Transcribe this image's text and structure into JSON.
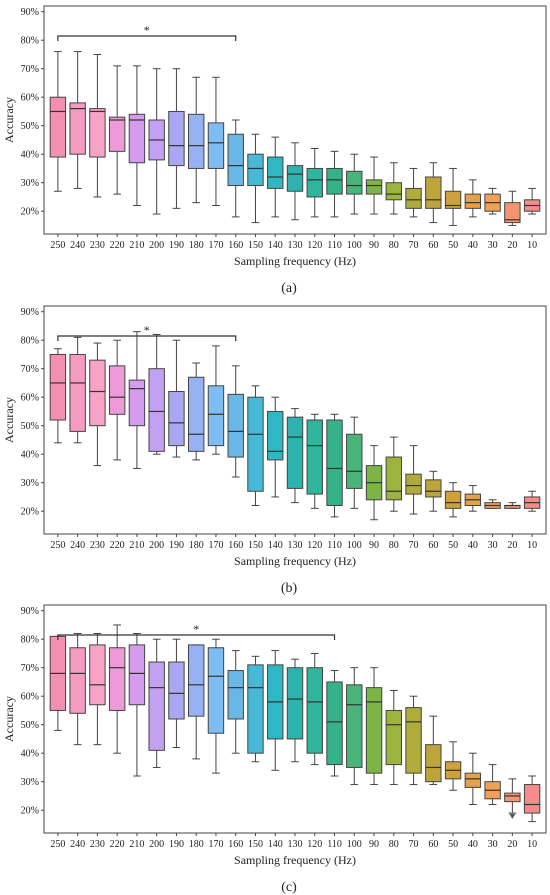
{
  "figure": {
    "panels": [
      "a",
      "b",
      "c"
    ]
  },
  "chart_data": [
    {
      "type": "box",
      "caption": "(a)",
      "xlabel": "Sampling frequency (Hz)",
      "ylabel": "Accuracy",
      "ylim": [
        12,
        92
      ],
      "yticks": [
        "20%",
        "30%",
        "40%",
        "50%",
        "60%",
        "70%",
        "80%",
        "90%"
      ],
      "ytick_values": [
        20,
        30,
        40,
        50,
        60,
        70,
        80,
        90
      ],
      "categories": [
        "250",
        "240",
        "230",
        "220",
        "210",
        "200",
        "190",
        "180",
        "170",
        "160",
        "150",
        "140",
        "130",
        "120",
        "110",
        "100",
        "90",
        "80",
        "70",
        "60",
        "50",
        "40",
        "30",
        "20",
        "10"
      ],
      "colors": [
        "#f48fb1",
        "#f59ac0",
        "#f6a3c6",
        "#ee9ad8",
        "#d59cee",
        "#c3a1f2",
        "#a9a6f2",
        "#97b2f2",
        "#7fbcf4",
        "#6ab7e6",
        "#47b8d6",
        "#2fb7c4",
        "#2db3ae",
        "#2fb59b",
        "#35b388",
        "#48b479",
        "#7cb545",
        "#9db33e",
        "#b0ac3c",
        "#bda53b",
        "#cfa13c",
        "#e3a14b",
        "#f0a158",
        "#f5956f",
        "#f68b8b"
      ],
      "boxes": [
        {
          "min": 27,
          "q1": 39,
          "median": 55,
          "q3": 60,
          "max": 76
        },
        {
          "min": 28,
          "q1": 40,
          "median": 56,
          "q3": 58,
          "max": 76
        },
        {
          "min": 25,
          "q1": 39,
          "median": 55,
          "q3": 56,
          "max": 75
        },
        {
          "min": 26,
          "q1": 41,
          "median": 52,
          "q3": 53,
          "max": 71
        },
        {
          "min": 22,
          "q1": 37,
          "median": 52,
          "q3": 54,
          "max": 71
        },
        {
          "min": 19,
          "q1": 38,
          "median": 45,
          "q3": 52,
          "max": 70
        },
        {
          "min": 21,
          "q1": 36,
          "median": 43,
          "q3": 55,
          "max": 70
        },
        {
          "min": 23,
          "q1": 35,
          "median": 43,
          "q3": 54,
          "max": 67
        },
        {
          "min": 22,
          "q1": 35,
          "median": 44,
          "q3": 51,
          "max": 67
        },
        {
          "min": 18,
          "q1": 29,
          "median": 36,
          "q3": 47,
          "max": 52
        },
        {
          "min": 16,
          "q1": 29,
          "median": 35,
          "q3": 40,
          "max": 47
        },
        {
          "min": 18,
          "q1": 28,
          "median": 32,
          "q3": 39,
          "max": 46
        },
        {
          "min": 17,
          "q1": 27,
          "median": 33,
          "q3": 36,
          "max": 44
        },
        {
          "min": 18,
          "q1": 25,
          "median": 31,
          "q3": 35,
          "max": 42
        },
        {
          "min": 18,
          "q1": 26,
          "median": 31,
          "q3": 35,
          "max": 41
        },
        {
          "min": 19,
          "q1": 26,
          "median": 29,
          "q3": 34,
          "max": 40
        },
        {
          "min": 19,
          "q1": 26,
          "median": 29,
          "q3": 31,
          "max": 39
        },
        {
          "min": 19,
          "q1": 24,
          "median": 26,
          "q3": 30,
          "max": 37
        },
        {
          "min": 18,
          "q1": 21,
          "median": 24,
          "q3": 28,
          "max": 35
        },
        {
          "min": 16,
          "q1": 21,
          "median": 24,
          "q3": 32,
          "max": 37
        },
        {
          "min": 15,
          "q1": 21,
          "median": 22,
          "q3": 27,
          "max": 35
        },
        {
          "min": 18,
          "q1": 21,
          "median": 23,
          "q3": 26,
          "max": 31
        },
        {
          "min": 19,
          "q1": 20,
          "median": 23,
          "q3": 26,
          "max": 28
        },
        {
          "min": 15,
          "q1": 16,
          "median": 17,
          "q3": 23,
          "max": 27
        },
        {
          "min": 19,
          "q1": 20,
          "median": 22,
          "q3": 24,
          "max": 28
        }
      ],
      "significance": {
        "from": "250",
        "to": "160",
        "label": "*"
      }
    },
    {
      "type": "box",
      "caption": "(b)",
      "xlabel": "Sampling frequency (Hz)",
      "ylabel": "Accuracy",
      "ylim": [
        12,
        92
      ],
      "yticks": [
        "20%",
        "30%",
        "40%",
        "50%",
        "60%",
        "70%",
        "80%",
        "90%"
      ],
      "ytick_values": [
        20,
        30,
        40,
        50,
        60,
        70,
        80,
        90
      ],
      "categories": [
        "250",
        "240",
        "230",
        "220",
        "210",
        "200",
        "190",
        "180",
        "170",
        "160",
        "150",
        "140",
        "130",
        "120",
        "110",
        "100",
        "90",
        "80",
        "70",
        "60",
        "50",
        "40",
        "30",
        "20",
        "10"
      ],
      "colors": [
        "#f48fb1",
        "#f59ac0",
        "#f6a3c6",
        "#ee9ad8",
        "#d59cee",
        "#c3a1f2",
        "#a9a6f2",
        "#97b2f2",
        "#7fbcf4",
        "#6ab7e6",
        "#47b8d6",
        "#2fb7c4",
        "#2db3ae",
        "#2fb59b",
        "#35b388",
        "#48b479",
        "#7cb545",
        "#9db33e",
        "#b0ac3c",
        "#bda53b",
        "#cfa13c",
        "#e3a14b",
        "#f0a158",
        "#f5956f",
        "#f68b8b"
      ],
      "boxes": [
        {
          "min": 44,
          "q1": 52,
          "median": 65,
          "q3": 75,
          "max": 77
        },
        {
          "min": 44,
          "q1": 48,
          "median": 65,
          "q3": 75,
          "max": 81
        },
        {
          "min": 36,
          "q1": 50,
          "median": 62,
          "q3": 73,
          "max": 79
        },
        {
          "min": 38,
          "q1": 54,
          "median": 60,
          "q3": 71,
          "max": 80
        },
        {
          "min": 35,
          "q1": 50,
          "median": 63,
          "q3": 66,
          "max": 83
        },
        {
          "min": 40,
          "q1": 41,
          "median": 55,
          "q3": 70,
          "max": 82
        },
        {
          "min": 39,
          "q1": 43,
          "median": 51,
          "q3": 62,
          "max": 80
        },
        {
          "min": 38,
          "q1": 41,
          "median": 47,
          "q3": 67,
          "max": 72
        },
        {
          "min": 40,
          "q1": 43,
          "median": 54,
          "q3": 64,
          "max": 78
        },
        {
          "min": 32,
          "q1": 39,
          "median": 48,
          "q3": 61,
          "max": 71
        },
        {
          "min": 22,
          "q1": 27,
          "median": 47,
          "q3": 60,
          "max": 64
        },
        {
          "min": 25,
          "q1": 38,
          "median": 41,
          "q3": 55,
          "max": 60
        },
        {
          "min": 23,
          "q1": 28,
          "median": 46,
          "q3": 53,
          "max": 56
        },
        {
          "min": 21,
          "q1": 26,
          "median": 43,
          "q3": 52,
          "max": 54
        },
        {
          "min": 18,
          "q1": 22,
          "median": 35,
          "q3": 52,
          "max": 54
        },
        {
          "min": 21,
          "q1": 28,
          "median": 34,
          "q3": 47,
          "max": 53
        },
        {
          "min": 17,
          "q1": 24,
          "median": 30,
          "q3": 36,
          "max": 43
        },
        {
          "min": 20,
          "q1": 24,
          "median": 27,
          "q3": 39,
          "max": 46
        },
        {
          "min": 19,
          "q1": 26,
          "median": 29,
          "q3": 33,
          "max": 43
        },
        {
          "min": 20,
          "q1": 25,
          "median": 27,
          "q3": 31,
          "max": 34
        },
        {
          "min": 18,
          "q1": 21,
          "median": 23,
          "q3": 27,
          "max": 30
        },
        {
          "min": 20,
          "q1": 22,
          "median": 24,
          "q3": 26,
          "max": 29
        },
        {
          "min": 21,
          "q1": 21,
          "median": 22,
          "q3": 23,
          "max": 24
        },
        {
          "min": 21,
          "q1": 21,
          "median": 22,
          "q3": 22,
          "max": 23
        },
        {
          "min": 20,
          "q1": 21,
          "median": 23,
          "q3": 25,
          "max": 27
        }
      ],
      "significance": {
        "from": "250",
        "to": "160",
        "label": "*"
      }
    },
    {
      "type": "box",
      "caption": "(c)",
      "xlabel": "Sampling frequency (Hz)",
      "ylabel": "Accuracy",
      "ylim": [
        12,
        92
      ],
      "yticks": [
        "20%",
        "30%",
        "40%",
        "50%",
        "60%",
        "70%",
        "80%",
        "90%"
      ],
      "ytick_values": [
        20,
        30,
        40,
        50,
        60,
        70,
        80,
        90
      ],
      "categories": [
        "250",
        "240",
        "230",
        "220",
        "210",
        "200",
        "190",
        "180",
        "170",
        "160",
        "150",
        "140",
        "130",
        "120",
        "110",
        "100",
        "90",
        "80",
        "70",
        "60",
        "50",
        "40",
        "30",
        "20",
        "10"
      ],
      "colors": [
        "#f48fb1",
        "#f59ac0",
        "#f6a3c6",
        "#ee9ad8",
        "#d59cee",
        "#c3a1f2",
        "#a9a6f2",
        "#97b2f2",
        "#7fbcf4",
        "#6ab7e6",
        "#47b8d6",
        "#2fb7c4",
        "#2db3ae",
        "#2fb59b",
        "#35b388",
        "#48b479",
        "#7cb545",
        "#9db33e",
        "#b0ac3c",
        "#bda53b",
        "#cfa13c",
        "#e3a14b",
        "#f0a158",
        "#f5956f",
        "#f68b8b"
      ],
      "boxes": [
        {
          "min": 48,
          "q1": 55,
          "median": 68,
          "q3": 81,
          "max": 81
        },
        {
          "min": 43,
          "q1": 54,
          "median": 68,
          "q3": 77,
          "max": 82
        },
        {
          "min": 43,
          "q1": 57,
          "median": 64,
          "q3": 78,
          "max": 82
        },
        {
          "min": 40,
          "q1": 55,
          "median": 70,
          "q3": 77,
          "max": 85
        },
        {
          "min": 32,
          "q1": 57,
          "median": 68,
          "q3": 78,
          "max": 82
        },
        {
          "min": 35,
          "q1": 41,
          "median": 63,
          "q3": 72,
          "max": 80
        },
        {
          "min": 42,
          "q1": 52,
          "median": 61,
          "q3": 72,
          "max": 80
        },
        {
          "min": 38,
          "q1": 53,
          "median": 64,
          "q3": 78,
          "max": 78
        },
        {
          "min": 33,
          "q1": 47,
          "median": 67,
          "q3": 77,
          "max": 80
        },
        {
          "min": 40,
          "q1": 52,
          "median": 63,
          "q3": 69,
          "max": 76
        },
        {
          "min": 37,
          "q1": 40,
          "median": 63,
          "q3": 71,
          "max": 74
        },
        {
          "min": 34,
          "q1": 45,
          "median": 58,
          "q3": 71,
          "max": 76
        },
        {
          "min": 37,
          "q1": 45,
          "median": 59,
          "q3": 70,
          "max": 73
        },
        {
          "min": 36,
          "q1": 40,
          "median": 58,
          "q3": 70,
          "max": 75
        },
        {
          "min": 32,
          "q1": 36,
          "median": 51,
          "q3": 65,
          "max": 69
        },
        {
          "min": 29,
          "q1": 35,
          "median": 57,
          "q3": 64,
          "max": 70
        },
        {
          "min": 29,
          "q1": 33,
          "median": 58,
          "q3": 63,
          "max": 70
        },
        {
          "min": 29,
          "q1": 36,
          "median": 50,
          "q3": 55,
          "max": 62
        },
        {
          "min": 29,
          "q1": 33,
          "median": 51,
          "q3": 56,
          "max": 60
        },
        {
          "min": 29,
          "q1": 30,
          "median": 35,
          "q3": 43,
          "max": 53
        },
        {
          "min": 27,
          "q1": 31,
          "median": 34,
          "q3": 37,
          "max": 44
        },
        {
          "min": 22,
          "q1": 28,
          "median": 31,
          "q3": 33,
          "max": 40
        },
        {
          "min": 22,
          "q1": 24,
          "median": 27,
          "q3": 30,
          "max": 36
        },
        {
          "min": 19,
          "q1": 23,
          "median": 25,
          "q3": 26,
          "max": 31,
          "outlier": 18
        },
        {
          "min": 16,
          "q1": 19,
          "median": 22,
          "q3": 29,
          "max": 32
        }
      ],
      "significance": {
        "from": "250",
        "to": "110",
        "label": "*"
      }
    }
  ]
}
